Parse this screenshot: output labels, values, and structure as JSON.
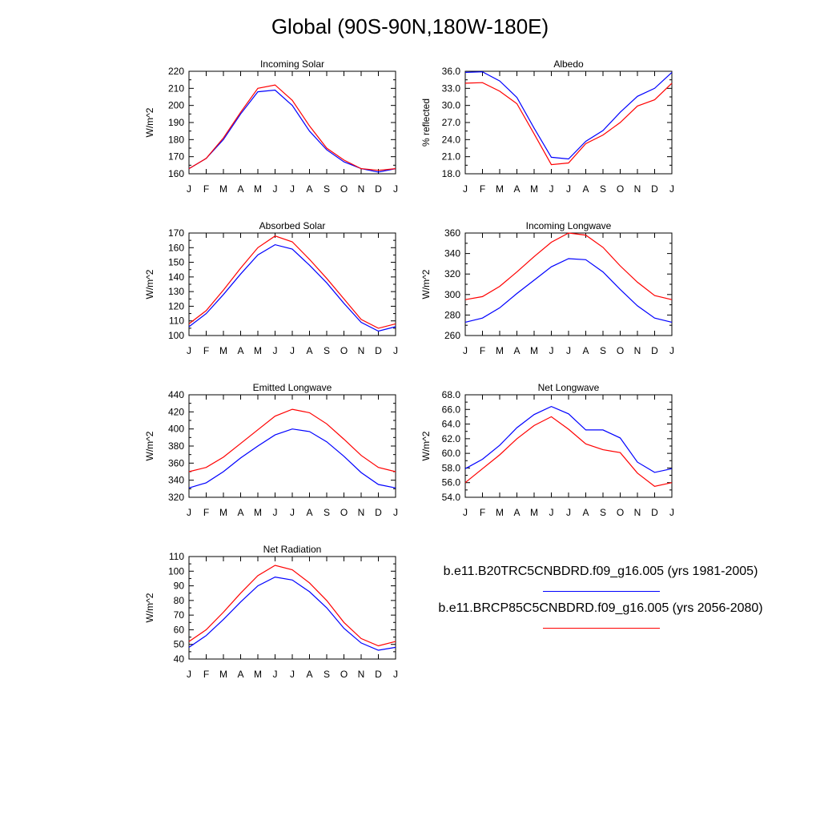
{
  "title": "Global (90S-90N,180W-180E)",
  "colors": {
    "run1": "#0000ff",
    "run2": "#ff0000"
  },
  "legend": {
    "run1_label": "b.e11.B20TRC5CNBDRD.f09_g16.005 (yrs 1981-2005)",
    "run2_label": "b.e11.BRCP85C5CNBDRD.f09_g16.005 (yrs 2056-2080)"
  },
  "chart_data": [
    {
      "type": "line",
      "title": "Incoming Solar",
      "ylabel": "W/m^2",
      "x": [
        "J",
        "F",
        "M",
        "A",
        "M",
        "J",
        "J",
        "A",
        "S",
        "O",
        "N",
        "D",
        "J"
      ],
      "ylim": [
        160,
        220
      ],
      "yticks": [
        "160",
        "170",
        "180",
        "190",
        "200",
        "210",
        "220"
      ],
      "series": [
        {
          "color": "#0000ff",
          "values": [
            163,
            169,
            180,
            195,
            208,
            209,
            200,
            185,
            174,
            167,
            163,
            161,
            163
          ]
        },
        {
          "color": "#ff0000",
          "values": [
            163,
            169,
            181,
            196,
            210,
            212,
            203,
            188,
            175,
            168,
            163,
            162,
            163
          ]
        }
      ]
    },
    {
      "type": "line",
      "title": "Albedo",
      "ylabel": "% reflected",
      "x": [
        "J",
        "F",
        "M",
        "A",
        "M",
        "J",
        "J",
        "A",
        "S",
        "O",
        "N",
        "D",
        "J"
      ],
      "ylim": [
        18.0,
        36.0
      ],
      "yticks": [
        "18.0",
        "21.0",
        "24.0",
        "27.0",
        "30.0",
        "33.0",
        "36.0"
      ],
      "series": [
        {
          "color": "#0000ff",
          "values": [
            35.8,
            35.9,
            34.3,
            31.4,
            26.0,
            20.9,
            20.6,
            23.7,
            25.6,
            28.8,
            31.6,
            33.0,
            35.8
          ]
        },
        {
          "color": "#ff0000",
          "values": [
            33.9,
            34.0,
            32.5,
            30.3,
            25.0,
            19.6,
            19.9,
            23.3,
            24.8,
            27.0,
            29.9,
            31.0,
            33.9
          ]
        }
      ]
    },
    {
      "type": "line",
      "title": "Absorbed Solar",
      "ylabel": "W/m^2",
      "x": [
        "J",
        "F",
        "M",
        "A",
        "M",
        "J",
        "J",
        "A",
        "S",
        "O",
        "N",
        "D",
        "J"
      ],
      "ylim": [
        100,
        170
      ],
      "yticks": [
        "100",
        "110",
        "120",
        "130",
        "140",
        "150",
        "160",
        "170"
      ],
      "series": [
        {
          "color": "#0000ff",
          "values": [
            106,
            115,
            128,
            142,
            155,
            162,
            159,
            148,
            136,
            122,
            109,
            103,
            106
          ]
        },
        {
          "color": "#ff0000",
          "values": [
            108,
            117,
            131,
            146,
            160,
            168,
            164,
            152,
            139,
            125,
            111,
            105,
            108
          ]
        }
      ]
    },
    {
      "type": "line",
      "title": "Incoming Longwave",
      "ylabel": "W/m^2",
      "x": [
        "J",
        "F",
        "M",
        "A",
        "M",
        "J",
        "J",
        "A",
        "S",
        "O",
        "N",
        "D",
        "J"
      ],
      "ylim": [
        260,
        360
      ],
      "yticks": [
        "260",
        "280",
        "300",
        "320",
        "340",
        "360"
      ],
      "series": [
        {
          "color": "#0000ff",
          "values": [
            273,
            277,
            287,
            301,
            314,
            327,
            335,
            334,
            322,
            305,
            289,
            277,
            273
          ]
        },
        {
          "color": "#ff0000",
          "values": [
            295,
            298,
            308,
            322,
            337,
            351,
            360,
            358,
            346,
            328,
            312,
            299,
            295
          ]
        }
      ]
    },
    {
      "type": "line",
      "title": "Emitted Longwave",
      "ylabel": "W/m^2",
      "x": [
        "J",
        "F",
        "M",
        "A",
        "M",
        "J",
        "J",
        "A",
        "S",
        "O",
        "N",
        "D",
        "J"
      ],
      "ylim": [
        320,
        440
      ],
      "yticks": [
        "320",
        "340",
        "360",
        "380",
        "400",
        "420",
        "440"
      ],
      "series": [
        {
          "color": "#0000ff",
          "values": [
            331,
            337,
            350,
            366,
            380,
            393,
            400,
            397,
            385,
            368,
            349,
            335,
            331
          ]
        },
        {
          "color": "#ff0000",
          "values": [
            350,
            355,
            367,
            383,
            399,
            415,
            423,
            419,
            406,
            388,
            369,
            355,
            350
          ]
        }
      ]
    },
    {
      "type": "line",
      "title": "Net Longwave",
      "ylabel": "W/m^2",
      "x": [
        "J",
        "F",
        "M",
        "A",
        "M",
        "J",
        "J",
        "A",
        "S",
        "O",
        "N",
        "D",
        "J"
      ],
      "ylim": [
        54.0,
        68.0
      ],
      "yticks": [
        "54.0",
        "56.0",
        "58.0",
        "60.0",
        "62.0",
        "64.0",
        "66.0",
        "68.0"
      ],
      "series": [
        {
          "color": "#0000ff",
          "values": [
            57.9,
            59.2,
            61.1,
            63.5,
            65.3,
            66.4,
            65.4,
            63.2,
            63.2,
            62.1,
            58.8,
            57.4,
            57.9
          ]
        },
        {
          "color": "#ff0000",
          "values": [
            56.0,
            57.9,
            59.8,
            62.0,
            63.8,
            65.0,
            63.3,
            61.3,
            60.5,
            60.1,
            57.3,
            55.5,
            56.0
          ]
        }
      ]
    },
    {
      "type": "line",
      "title": "Net Radiation",
      "ylabel": "W/m^2",
      "x": [
        "J",
        "F",
        "M",
        "A",
        "M",
        "J",
        "J",
        "A",
        "S",
        "O",
        "N",
        "D",
        "J"
      ],
      "ylim": [
        40,
        110
      ],
      "yticks": [
        "40",
        "50",
        "60",
        "70",
        "80",
        "90",
        "100",
        "110"
      ],
      "series": [
        {
          "color": "#0000ff",
          "values": [
            48,
            56,
            67,
            79,
            90,
            96,
            94,
            86,
            75,
            61,
            51,
            46,
            48
          ]
        },
        {
          "color": "#ff0000",
          "values": [
            52,
            60,
            72,
            85,
            97,
            104,
            101,
            92,
            80,
            65,
            54,
            49,
            52
          ]
        }
      ]
    }
  ]
}
